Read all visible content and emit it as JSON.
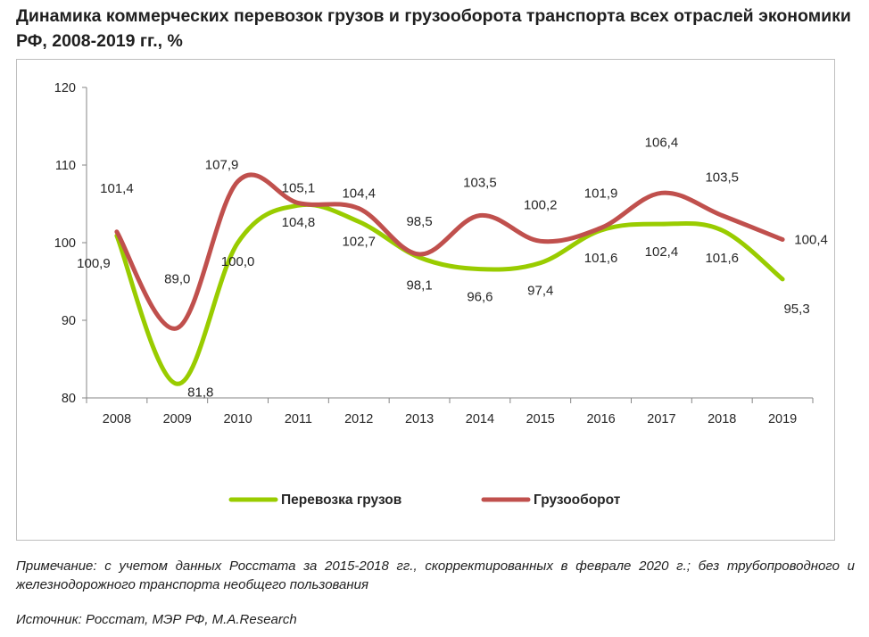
{
  "title": "Динамика коммерческих перевозок грузов и грузооборота транспорта всех отраслей экономики РФ, 2008-2019 гг., %",
  "note": "Примечание: с учетом данных Росстата за 2015-2018 гг., скорректированных в феврале 2020 г.; без трубопроводного  и железнодорожного транспорта необщего пользования",
  "source": "Источник: Росстат, МЭР РФ, M.A.Research",
  "colors": {
    "freight": "#99cc00",
    "turnover": "#c0504d",
    "axis": "#868686"
  },
  "chart_data": {
    "type": "line",
    "x": [
      "2008",
      "2009",
      "2010",
      "2011",
      "2012",
      "2013",
      "2014",
      "2015",
      "2016",
      "2017",
      "2018",
      "2019"
    ],
    "ylim": [
      80,
      120
    ],
    "yticks": [
      "80",
      "90",
      "100",
      "110",
      "120"
    ],
    "grid": false,
    "legend": "bottom",
    "series": [
      {
        "name": "Перевозка грузов",
        "color": "#99cc00",
        "values": [
          100.9,
          81.8,
          100.0,
          104.8,
          102.7,
          98.1,
          96.6,
          97.4,
          101.6,
          102.4,
          101.6,
          95.3
        ],
        "labels": [
          "100,9",
          "81,8",
          "100,0",
          "104,8",
          "102,7",
          "98,1",
          "96,6",
          "97,4",
          "101,6",
          "102,4",
          "101,6",
          "95,3"
        ]
      },
      {
        "name": "Грузооборот",
        "color": "#c0504d",
        "values": [
          101.4,
          89.0,
          107.9,
          105.1,
          104.4,
          98.5,
          103.5,
          100.2,
          101.9,
          106.4,
          103.5,
          100.4
        ],
        "labels": [
          "101,4",
          "89,0",
          "107,9",
          "105,1",
          "104,4",
          "98,5",
          "103,5",
          "100,2",
          "101,9",
          "106,4",
          "103,5",
          "100,4"
        ]
      }
    ]
  }
}
